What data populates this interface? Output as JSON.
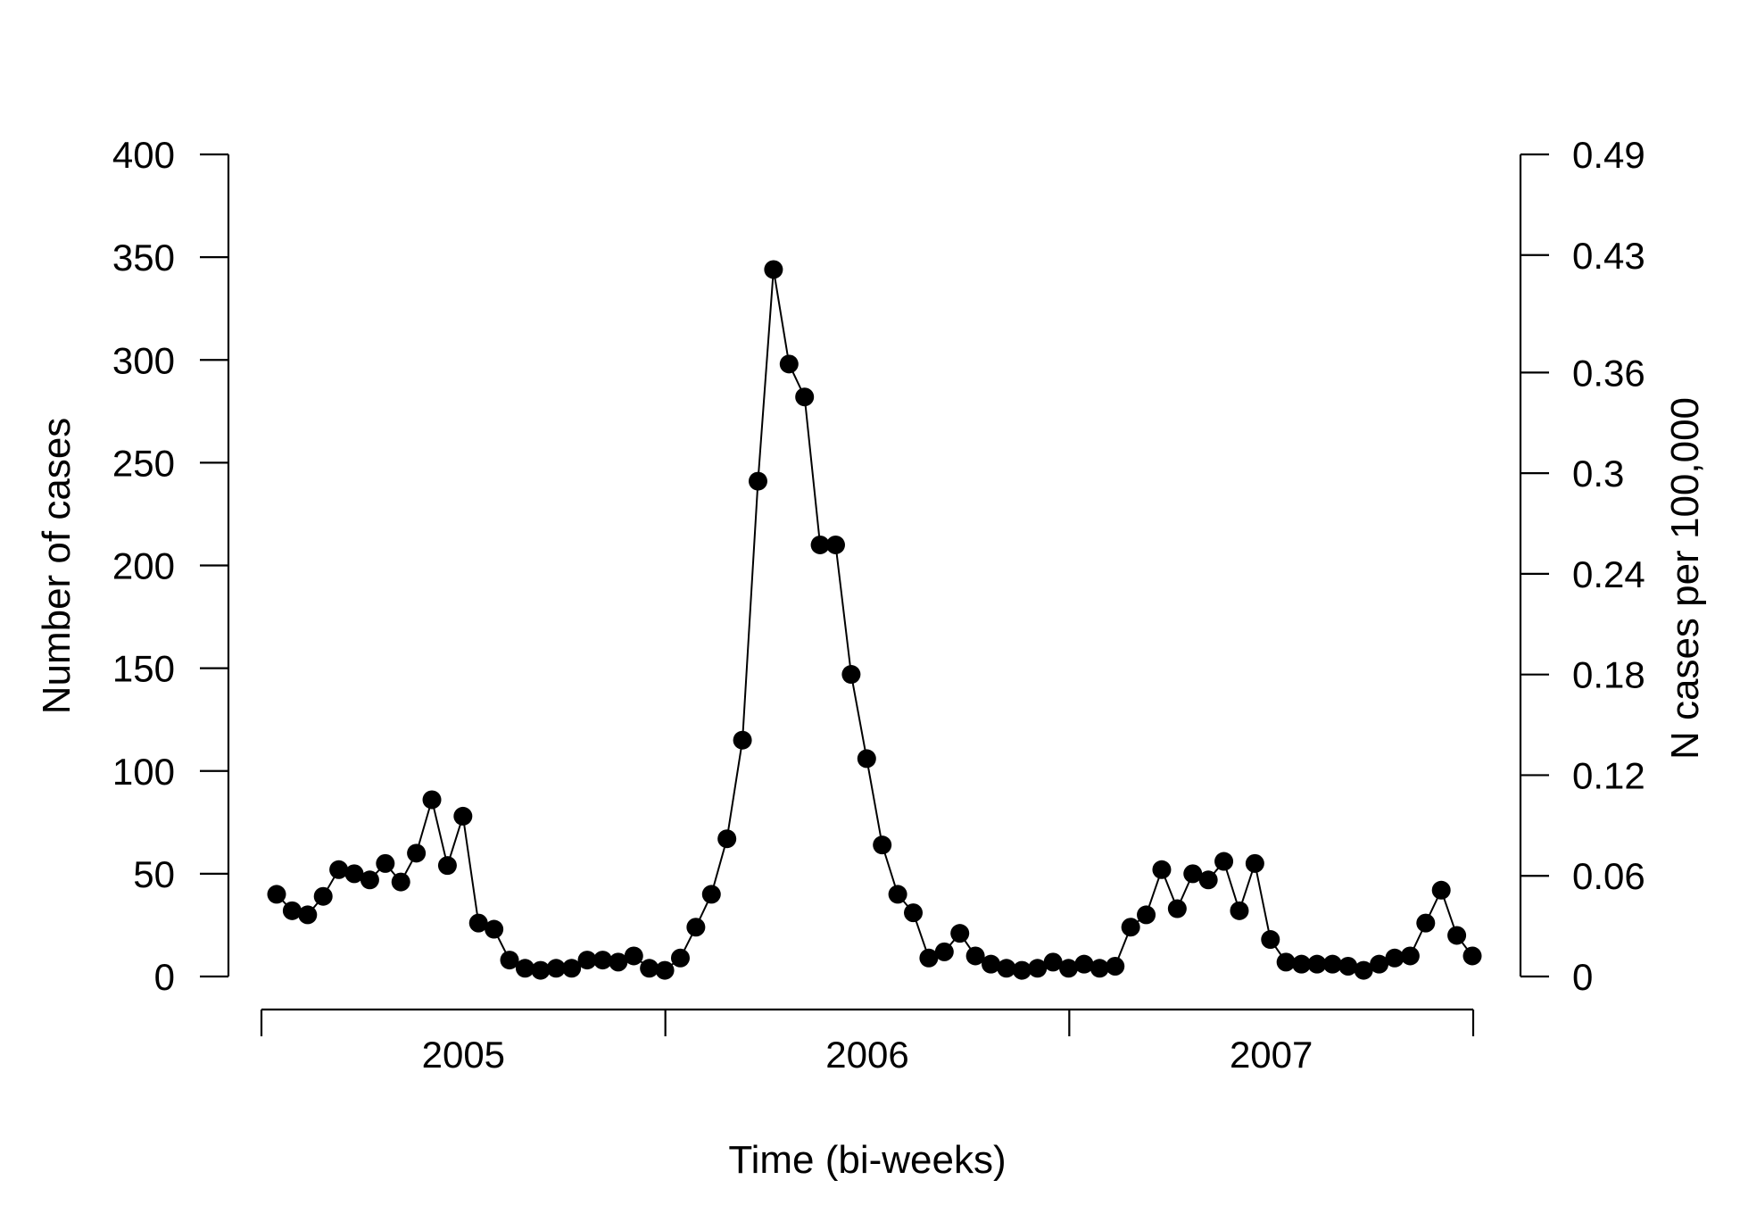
{
  "chart_data": {
    "type": "line",
    "xlabel": "Time (bi-weeks)",
    "ylabel": "Number of cases",
    "ylabel_right": "N cases per 100,000",
    "ylim": [
      0,
      400
    ],
    "yticks": [
      0,
      50,
      100,
      150,
      200,
      250,
      300,
      350,
      400
    ],
    "ylim_right": [
      0,
      0.49
    ],
    "yticks_right": [
      "0",
      "0.06",
      "0.12",
      "0.18",
      "0.24",
      "0.3",
      "0.36",
      "0.43",
      "0.49"
    ],
    "x_period_labels": [
      "2005",
      "2006",
      "2007"
    ],
    "x_period_points": [
      26,
      26,
      26
    ],
    "grid": false,
    "legend": "none",
    "marker": "filled-circle",
    "series": [
      {
        "values": [
          40,
          32,
          30,
          39,
          52,
          50,
          47,
          55,
          46,
          60,
          86,
          54,
          78,
          26,
          23,
          8,
          4,
          3,
          4,
          4,
          8,
          8,
          7,
          10,
          4,
          3,
          9,
          24,
          40,
          67,
          115,
          241,
          344,
          298,
          282,
          210,
          210,
          147,
          106,
          64,
          40,
          31,
          9,
          12,
          21,
          10,
          6,
          4,
          3,
          4,
          7,
          4,
          6,
          4,
          5,
          24,
          30,
          52,
          33,
          50,
          47,
          56,
          32,
          55,
          18,
          7,
          6,
          6,
          6,
          5,
          3,
          6,
          9,
          10,
          26,
          42,
          20,
          10
        ]
      }
    ]
  }
}
